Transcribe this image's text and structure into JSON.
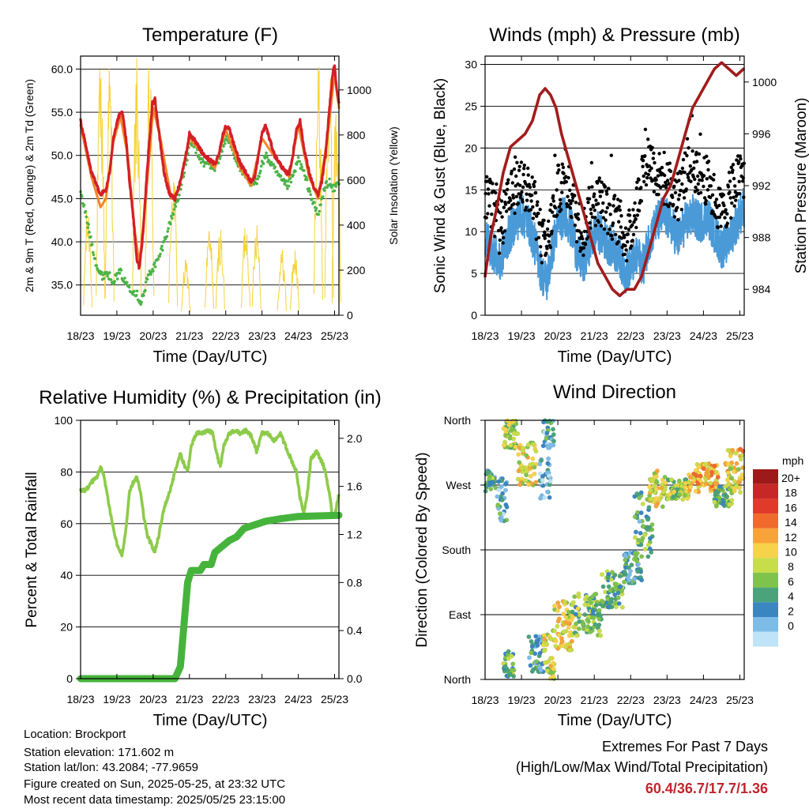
{
  "colors": {
    "temp2m": "#d31f26",
    "temp9m": "#f0892a",
    "dew": "#4cb348",
    "solar": "#f5d33b",
    "gust": "#000000",
    "wind": "#4a9ad8",
    "pressure": "#a21c1c",
    "rh": "#8dcb4a",
    "precip": "#46b43c",
    "extremes": "#c0262d"
  },
  "x_ticks": [
    "18/23",
    "19/23",
    "20/23",
    "21/23",
    "22/23",
    "23/23",
    "24/23",
    "25/23"
  ],
  "temperature_chart": {
    "type": "line",
    "title": "Temperature (F)",
    "xlabel": "Time (Day/UTC)",
    "ylabel": "2m & 9m T (Red, Orange) & 2m Td (Green)",
    "ylabel_right": "Solar Insolation (Yellow)",
    "ylim": [
      31.5,
      61.5
    ],
    "yticks": [
      "35.0",
      "40.0",
      "45.0",
      "50.0",
      "55.0",
      "60.0"
    ],
    "y2lim": [
      0,
      1150
    ],
    "y2ticks": [
      "0",
      "200",
      "400",
      "600",
      "800",
      "1000"
    ],
    "temp_2m": [
      [
        0,
        54
      ],
      [
        0.15,
        51
      ],
      [
        0.3,
        48
      ],
      [
        0.45,
        46.5
      ],
      [
        0.55,
        45.5
      ],
      [
        0.7,
        46
      ],
      [
        0.8,
        48
      ],
      [
        0.9,
        52
      ],
      [
        1.05,
        54.5
      ],
      [
        1.15,
        55
      ],
      [
        1.25,
        52
      ],
      [
        1.35,
        47
      ],
      [
        1.45,
        43
      ],
      [
        1.55,
        38
      ],
      [
        1.62,
        37
      ],
      [
        1.7,
        40
      ],
      [
        1.8,
        46
      ],
      [
        1.9,
        52
      ],
      [
        1.98,
        56
      ],
      [
        2.05,
        56.5
      ],
      [
        2.15,
        53
      ],
      [
        2.3,
        48
      ],
      [
        2.45,
        45.5
      ],
      [
        2.6,
        45
      ],
      [
        2.75,
        47
      ],
      [
        2.9,
        50
      ],
      [
        3.0,
        52.5
      ],
      [
        3.1,
        52
      ],
      [
        3.25,
        51
      ],
      [
        3.4,
        50
      ],
      [
        3.55,
        49.5
      ],
      [
        3.7,
        49
      ],
      [
        3.8,
        50
      ],
      [
        3.9,
        52
      ],
      [
        4.0,
        53.5
      ],
      [
        4.1,
        53
      ],
      [
        4.25,
        51
      ],
      [
        4.4,
        49
      ],
      [
        4.55,
        48
      ],
      [
        4.7,
        47
      ],
      [
        4.8,
        47.5
      ],
      [
        4.9,
        50
      ],
      [
        5.0,
        52.5
      ],
      [
        5.1,
        53.5
      ],
      [
        5.2,
        52
      ],
      [
        5.35,
        50
      ],
      [
        5.5,
        49
      ],
      [
        5.65,
        48
      ],
      [
        5.75,
        48
      ],
      [
        5.85,
        50
      ],
      [
        5.95,
        53
      ],
      [
        6.05,
        54
      ],
      [
        6.15,
        51
      ],
      [
        6.3,
        48
      ],
      [
        6.45,
        46
      ],
      [
        6.55,
        45.5
      ],
      [
        6.65,
        47
      ],
      [
        6.75,
        50
      ],
      [
        6.85,
        55
      ],
      [
        6.95,
        59.5
      ],
      [
        7.0,
        60.4
      ],
      [
        7.05,
        58
      ],
      [
        7.12,
        56
      ]
    ],
    "temp_9m": [
      [
        0,
        53.5
      ],
      [
        0.3,
        47.5
      ],
      [
        0.55,
        44
      ],
      [
        0.7,
        45
      ],
      [
        0.9,
        51.5
      ],
      [
        1.1,
        54.5
      ],
      [
        1.3,
        50
      ],
      [
        1.5,
        41
      ],
      [
        1.62,
        37.5
      ],
      [
        1.8,
        45
      ],
      [
        2.0,
        55.5
      ],
      [
        2.2,
        52
      ],
      [
        2.5,
        45
      ],
      [
        2.7,
        46
      ],
      [
        3.0,
        52
      ],
      [
        3.3,
        50.5
      ],
      [
        3.7,
        48.5
      ],
      [
        4.0,
        53
      ],
      [
        4.4,
        48.5
      ],
      [
        4.7,
        46.5
      ],
      [
        5.0,
        52
      ],
      [
        5.4,
        49.5
      ],
      [
        5.75,
        47.5
      ],
      [
        6.0,
        53.5
      ],
      [
        6.3,
        47.5
      ],
      [
        6.55,
        45
      ],
      [
        6.8,
        52
      ],
      [
        7.0,
        59.5
      ],
      [
        7.12,
        55.5
      ]
    ],
    "dewpoint": [
      [
        0,
        45.5
      ],
      [
        0.1,
        44
      ],
      [
        0.2,
        42
      ],
      [
        0.3,
        40
      ],
      [
        0.4,
        38
      ],
      [
        0.5,
        36.5
      ],
      [
        0.6,
        36
      ],
      [
        0.7,
        36.5
      ],
      [
        0.8,
        36
      ],
      [
        0.9,
        35.5
      ],
      [
        1.0,
        36
      ],
      [
        1.1,
        36.5
      ],
      [
        1.2,
        35.5
      ],
      [
        1.3,
        35
      ],
      [
        1.4,
        34.5
      ],
      [
        1.55,
        34
      ],
      [
        1.65,
        33
      ],
      [
        1.75,
        34
      ],
      [
        1.85,
        36
      ],
      [
        2.0,
        37
      ],
      [
        2.15,
        38
      ],
      [
        2.3,
        40
      ],
      [
        2.45,
        42
      ],
      [
        2.6,
        44
      ],
      [
        2.75,
        46
      ],
      [
        2.9,
        49
      ],
      [
        3.0,
        51
      ],
      [
        3.1,
        51.5
      ],
      [
        3.25,
        50
      ],
      [
        3.4,
        49
      ],
      [
        3.55,
        49
      ],
      [
        3.7,
        48.5
      ],
      [
        3.85,
        50
      ],
      [
        4.0,
        52
      ],
      [
        4.1,
        51.5
      ],
      [
        4.25,
        50
      ],
      [
        4.4,
        48.5
      ],
      [
        4.55,
        47.5
      ],
      [
        4.7,
        46.5
      ],
      [
        4.85,
        47
      ],
      [
        5.0,
        49
      ],
      [
        5.1,
        50
      ],
      [
        5.25,
        49
      ],
      [
        5.4,
        48
      ],
      [
        5.55,
        47
      ],
      [
        5.7,
        46.5
      ],
      [
        5.85,
        47.5
      ],
      [
        6.0,
        49.5
      ],
      [
        6.15,
        48
      ],
      [
        6.3,
        46
      ],
      [
        6.45,
        44
      ],
      [
        6.55,
        43
      ],
      [
        6.65,
        45
      ],
      [
        6.75,
        46.5
      ],
      [
        6.85,
        47
      ],
      [
        6.95,
        46
      ],
      [
        7.05,
        46.5
      ],
      [
        7.12,
        47
      ]
    ],
    "solar_pulses": [
      [
        0.2,
        500
      ],
      [
        0.55,
        1150
      ],
      [
        0.8,
        1150
      ],
      [
        1.55,
        1150
      ],
      [
        1.9,
        1150
      ],
      [
        2.55,
        700
      ],
      [
        2.9,
        250
      ],
      [
        3.55,
        400
      ],
      [
        3.85,
        400
      ],
      [
        4.55,
        450
      ],
      [
        4.85,
        450
      ],
      [
        5.55,
        300
      ],
      [
        5.9,
        300
      ],
      [
        6.55,
        1150
      ],
      [
        6.85,
        1150
      ],
      [
        7.05,
        1000
      ]
    ]
  },
  "wind_chart": {
    "type": "line",
    "title": "Winds (mph) & Pressure (mb)",
    "xlabel": "Time (Day/UTC)",
    "ylabel": "Sonic Wind & Gust (Blue, Black)",
    "ylabel_right": "Station Pressure (Maroon)",
    "ylim": [
      0,
      31
    ],
    "yticks": [
      "0",
      "5",
      "10",
      "15",
      "20",
      "25",
      "30"
    ],
    "y2lim": [
      982,
      1002
    ],
    "y2ticks": [
      "984",
      "988",
      "992",
      "996",
      "1000"
    ],
    "wind_mean": [
      [
        0,
        9
      ],
      [
        0.2,
        8
      ],
      [
        0.4,
        6
      ],
      [
        0.6,
        9
      ],
      [
        0.8,
        11
      ],
      [
        1.0,
        12
      ],
      [
        1.2,
        11
      ],
      [
        1.4,
        8
      ],
      [
        1.55,
        5
      ],
      [
        1.7,
        4
      ],
      [
        1.85,
        8
      ],
      [
        2.0,
        11
      ],
      [
        2.2,
        12
      ],
      [
        2.4,
        10
      ],
      [
        2.55,
        7
      ],
      [
        2.7,
        6
      ],
      [
        2.9,
        9
      ],
      [
        3.1,
        10
      ],
      [
        3.3,
        9
      ],
      [
        3.5,
        8
      ],
      [
        3.7,
        7
      ],
      [
        3.85,
        5
      ],
      [
        4.0,
        6
      ],
      [
        4.2,
        7
      ],
      [
        4.35,
        6
      ],
      [
        4.5,
        9
      ],
      [
        4.7,
        11
      ],
      [
        4.9,
        12
      ],
      [
        5.1,
        11
      ],
      [
        5.3,
        9
      ],
      [
        5.5,
        11
      ],
      [
        5.7,
        12
      ],
      [
        5.9,
        11
      ],
      [
        6.1,
        12
      ],
      [
        6.3,
        10
      ],
      [
        6.5,
        8
      ],
      [
        6.7,
        9
      ],
      [
        6.9,
        11
      ],
      [
        7.1,
        13
      ]
    ],
    "gust": [
      [
        0,
        14
      ],
      [
        0.2,
        13
      ],
      [
        0.4,
        10
      ],
      [
        0.6,
        13
      ],
      [
        0.8,
        15
      ],
      [
        1.0,
        16
      ],
      [
        1.2,
        15
      ],
      [
        1.4,
        12
      ],
      [
        1.55,
        9
      ],
      [
        1.7,
        8
      ],
      [
        1.85,
        12
      ],
      [
        2.0,
        15
      ],
      [
        2.2,
        16
      ],
      [
        2.4,
        14
      ],
      [
        2.55,
        11
      ],
      [
        2.7,
        10
      ],
      [
        2.9,
        13
      ],
      [
        3.1,
        14
      ],
      [
        3.3,
        13
      ],
      [
        3.5,
        12
      ],
      [
        3.7,
        11
      ],
      [
        3.85,
        9
      ],
      [
        4.0,
        10
      ],
      [
        4.2,
        14
      ],
      [
        4.35,
        18
      ],
      [
        4.5,
        19
      ],
      [
        4.7,
        17
      ],
      [
        4.9,
        16
      ],
      [
        5.1,
        15
      ],
      [
        5.3,
        14
      ],
      [
        5.5,
        17
      ],
      [
        5.7,
        18
      ],
      [
        5.9,
        17
      ],
      [
        6.1,
        16
      ],
      [
        6.3,
        14
      ],
      [
        6.5,
        12
      ],
      [
        6.7,
        14
      ],
      [
        6.9,
        16
      ],
      [
        7.1,
        17
      ]
    ],
    "pressure": [
      [
        0,
        985
      ],
      [
        0.15,
        988
      ],
      [
        0.3,
        990
      ],
      [
        0.5,
        993
      ],
      [
        0.7,
        995
      ],
      [
        0.9,
        995.5
      ],
      [
        1.1,
        996
      ],
      [
        1.3,
        997
      ],
      [
        1.5,
        999
      ],
      [
        1.65,
        999.5
      ],
      [
        1.8,
        999
      ],
      [
        1.95,
        998
      ],
      [
        2.1,
        996
      ],
      [
        2.3,
        994
      ],
      [
        2.5,
        992
      ],
      [
        2.7,
        990
      ],
      [
        2.9,
        988
      ],
      [
        3.1,
        986
      ],
      [
        3.3,
        985
      ],
      [
        3.5,
        984
      ],
      [
        3.7,
        983.5
      ],
      [
        3.9,
        984
      ],
      [
        4.1,
        984
      ],
      [
        4.3,
        985
      ],
      [
        4.5,
        987
      ],
      [
        4.7,
        989
      ],
      [
        4.9,
        991
      ],
      [
        5.1,
        992
      ],
      [
        5.3,
        994
      ],
      [
        5.5,
        996
      ],
      [
        5.7,
        998
      ],
      [
        5.9,
        999
      ],
      [
        6.1,
        1000
      ],
      [
        6.3,
        1001
      ],
      [
        6.5,
        1001.5
      ],
      [
        6.7,
        1001
      ],
      [
        6.9,
        1000.5
      ],
      [
        7.1,
        1001
      ]
    ]
  },
  "humidity_chart": {
    "type": "line",
    "title": "Relative Humidity (%) & Precipitation (in)",
    "xlabel": "Time (Day/UTC)",
    "ylabel": "Percent & Total Rainfall",
    "ylim": [
      0,
      100
    ],
    "yticks": [
      "0",
      "20",
      "40",
      "60",
      "80",
      "100"
    ],
    "y2lim": [
      0,
      2.15
    ],
    "y2ticks": [
      "0.0",
      "0.4",
      "0.8",
      "1.2",
      "1.6",
      "2.0"
    ],
    "rh": [
      [
        0,
        73
      ],
      [
        0.15,
        73
      ],
      [
        0.3,
        76
      ],
      [
        0.45,
        78
      ],
      [
        0.55,
        82
      ],
      [
        0.65,
        78
      ],
      [
        0.75,
        70
      ],
      [
        0.85,
        62
      ],
      [
        0.95,
        55
      ],
      [
        1.05,
        50
      ],
      [
        1.15,
        48
      ],
      [
        1.25,
        58
      ],
      [
        1.35,
        72
      ],
      [
        1.45,
        76
      ],
      [
        1.55,
        78
      ],
      [
        1.65,
        72
      ],
      [
        1.75,
        62
      ],
      [
        1.85,
        55
      ],
      [
        1.95,
        52
      ],
      [
        2.05,
        49
      ],
      [
        2.15,
        55
      ],
      [
        2.3,
        66
      ],
      [
        2.45,
        72
      ],
      [
        2.6,
        80
      ],
      [
        2.75,
        87
      ],
      [
        2.85,
        83
      ],
      [
        2.95,
        80
      ],
      [
        3.05,
        90
      ],
      [
        3.2,
        95
      ],
      [
        3.35,
        95
      ],
      [
        3.5,
        96
      ],
      [
        3.65,
        95
      ],
      [
        3.75,
        87
      ],
      [
        3.85,
        82
      ],
      [
        3.95,
        90
      ],
      [
        4.1,
        95
      ],
      [
        4.25,
        96
      ],
      [
        4.4,
        95
      ],
      [
        4.55,
        96
      ],
      [
        4.7,
        94
      ],
      [
        4.85,
        88
      ],
      [
        5.0,
        95
      ],
      [
        5.15,
        95
      ],
      [
        5.35,
        92
      ],
      [
        5.5,
        95
      ],
      [
        5.65,
        90
      ],
      [
        5.8,
        85
      ],
      [
        5.95,
        80
      ],
      [
        6.05,
        70
      ],
      [
        6.15,
        64
      ],
      [
        6.25,
        72
      ],
      [
        6.35,
        85
      ],
      [
        6.5,
        88
      ],
      [
        6.65,
        84
      ],
      [
        6.75,
        80
      ],
      [
        6.85,
        72
      ],
      [
        6.95,
        62
      ],
      [
        7.05,
        66
      ],
      [
        7.12,
        72
      ]
    ],
    "precip": [
      [
        0,
        0
      ],
      [
        2.6,
        0
      ],
      [
        2.75,
        0.1
      ],
      [
        2.85,
        0.45
      ],
      [
        2.95,
        0.8
      ],
      [
        3.05,
        0.9
      ],
      [
        3.3,
        0.9
      ],
      [
        3.4,
        0.95
      ],
      [
        3.6,
        0.95
      ],
      [
        3.7,
        1.05
      ],
      [
        3.9,
        1.1
      ],
      [
        4.1,
        1.15
      ],
      [
        4.3,
        1.18
      ],
      [
        4.5,
        1.25
      ],
      [
        4.8,
        1.28
      ],
      [
        5.1,
        1.31
      ],
      [
        5.5,
        1.33
      ],
      [
        6.0,
        1.35
      ],
      [
        7.12,
        1.36
      ]
    ]
  },
  "direction_chart": {
    "type": "scatter",
    "title": "Wind Direction",
    "xlabel": "Time (Day/UTC)",
    "ylabel": "Direction (Colored By Speed)",
    "ylim": [
      0,
      360
    ],
    "yticks": [
      "North",
      "East",
      "South",
      "West",
      "North"
    ],
    "colorbar_label": "mph",
    "colorbar_ticks": [
      "20+",
      "18",
      "16",
      "14",
      "12",
      "10",
      "8",
      "6",
      "4",
      "2",
      "0"
    ],
    "colorbar_colors": [
      "#9e1a1a",
      "#c62828",
      "#e03a2a",
      "#ef6a2c",
      "#f8a33a",
      "#f6d34a",
      "#c8dd4a",
      "#7fc34d",
      "#4aa37a",
      "#3a86c1",
      "#7ebce8",
      "#bfe3f7"
    ],
    "clusters": [
      [
        0,
        0.3,
        260,
        290,
        6
      ],
      [
        0.3,
        0.6,
        220,
        280,
        4
      ],
      [
        0.5,
        0.9,
        320,
        360,
        9
      ],
      [
        0.9,
        1.4,
        270,
        330,
        11
      ],
      [
        1.5,
        1.8,
        250,
        310,
        3
      ],
      [
        1.6,
        1.9,
        320,
        360,
        4
      ],
      [
        0.5,
        0.8,
        0,
        40,
        7
      ],
      [
        1.2,
        1.6,
        10,
        60,
        5
      ],
      [
        1.6,
        1.9,
        0,
        70,
        10
      ],
      [
        1.9,
        2.4,
        40,
        110,
        12
      ],
      [
        2.4,
        3.2,
        60,
        120,
        8
      ],
      [
        3.2,
        3.8,
        100,
        150,
        7
      ],
      [
        3.8,
        4.3,
        130,
        180,
        5
      ],
      [
        4.1,
        4.6,
        170,
        260,
        6
      ],
      [
        4.5,
        5.0,
        240,
        290,
        11
      ],
      [
        5.0,
        5.6,
        250,
        280,
        9
      ],
      [
        5.6,
        6.4,
        260,
        300,
        13
      ],
      [
        6.3,
        6.8,
        240,
        270,
        7
      ],
      [
        6.6,
        7.1,
        260,
        320,
        12
      ]
    ]
  },
  "info": {
    "location": "Location: Brockport",
    "elevation": "Station elevation: 171.602 m",
    "latlon": "Station lat/lon: 43.2084; -77.9659",
    "created": "Figure created on Sun, 2025-05-25, at 23:32 UTC",
    "recent": "Most recent data timestamp: 2025/05/25 23:15:00"
  },
  "extremes": {
    "title": "Extremes For Past 7 Days",
    "subtitle": "(High/Low/Max Wind/Total Precipitation)",
    "values": "60.4/36.7/17.7/1.36"
  }
}
